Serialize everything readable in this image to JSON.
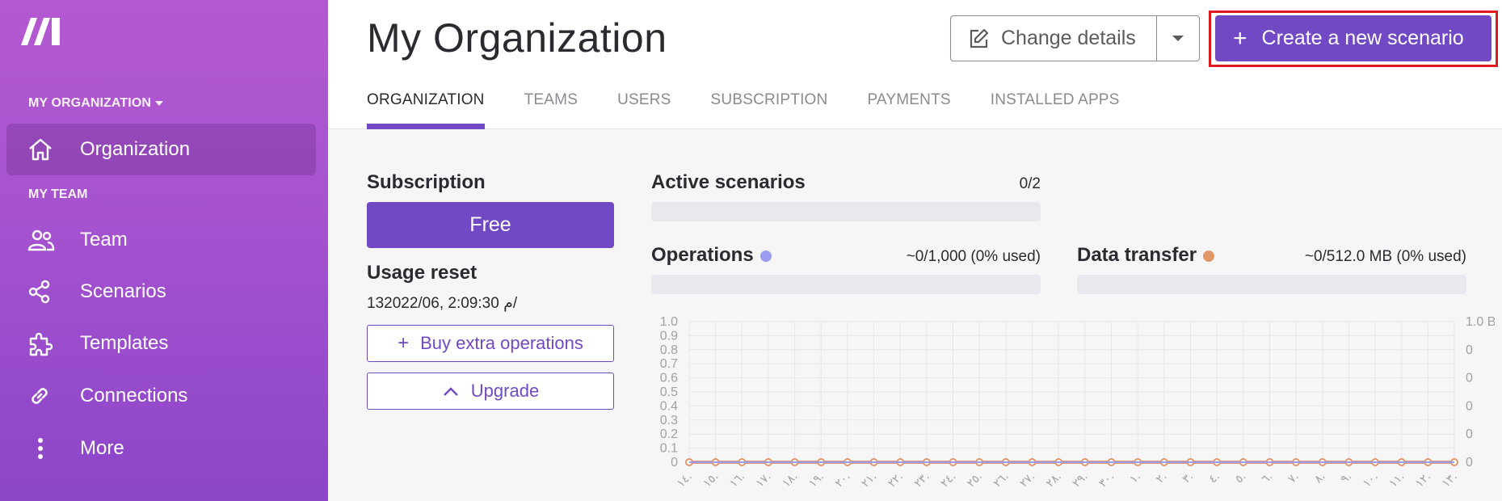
{
  "sidebar": {
    "org_label": "MY ORGANIZATION",
    "team_label": "MY TEAM",
    "items": [
      {
        "label": "Organization",
        "icon": "home-icon"
      },
      {
        "label": "Team",
        "icon": "users-icon"
      },
      {
        "label": "Scenarios",
        "icon": "share-icon"
      },
      {
        "label": "Templates",
        "icon": "puzzle-icon"
      },
      {
        "label": "Connections",
        "icon": "link-icon"
      },
      {
        "label": "More",
        "icon": "more-vertical-icon"
      }
    ]
  },
  "header": {
    "title": "My Organization",
    "change_details": "Change details",
    "create_scenario": "Create a new scenario",
    "tabs": [
      "ORGANIZATION",
      "TEAMS",
      "USERS",
      "SUBSCRIPTION",
      "PAYMENTS",
      "INSTALLED APPS"
    ],
    "active_tab": "ORGANIZATION"
  },
  "subscription": {
    "title": "Subscription",
    "plan": "Free",
    "reset_title": "Usage reset",
    "reset_date": "13م 2:09:30 ,2022/06/",
    "buy_ops": "Buy extra operations",
    "upgrade": "Upgrade"
  },
  "stats": {
    "active_title": "Active scenarios",
    "active_value": "0/2",
    "ops_title": "Operations",
    "ops_value": "~0/1,000 (0% used)",
    "transfer_title": "Data transfer",
    "transfer_value": "~0/512.0 MB (0% used)"
  },
  "colors": {
    "accent": "#7149c4",
    "ops_dot": "#9a9df0",
    "transfer_dot": "#e0976a",
    "highlight": "#e0191f"
  },
  "chart_data": {
    "type": "line",
    "x": [
      "١٤.",
      "١٥.",
      "١٦.",
      "١٧.",
      "١٨.",
      "١٩.",
      "٢٠.",
      "٢١.",
      "٢٢.",
      "٢٣.",
      "٢٤.",
      "٢٥.",
      "٢٦.",
      "٢٧.",
      "٢٨.",
      "٢٩.",
      "٣٠.",
      "١.",
      "٢.",
      "٣.",
      "٤.",
      "٥.",
      "٦.",
      "٧.",
      "٨.",
      "٩.",
      "١٠.",
      "١١.",
      "١٢.",
      "١٣."
    ],
    "y_left_ticks": [
      "1.0",
      "0.9",
      "0.8",
      "0.7",
      "0.6",
      "0.5",
      "0.4",
      "0.3",
      "0.2",
      "0.1",
      "0"
    ],
    "y_right_ticks": [
      "1.0 B",
      "0",
      "0",
      "0",
      "0",
      "0"
    ],
    "ylim": [
      0,
      1
    ],
    "series": [
      {
        "values": [
          0,
          0,
          0,
          0,
          0,
          0,
          0,
          0,
          0,
          0,
          0,
          0,
          0,
          0,
          0,
          0,
          0,
          0,
          0,
          0,
          0,
          0,
          0,
          0,
          0,
          0,
          0,
          0,
          0,
          0
        ],
        "color": "#e0976a"
      },
      {
        "values": [
          0,
          0,
          0,
          0,
          0,
          0,
          0,
          0,
          0,
          0,
          0,
          0,
          0,
          0,
          0,
          0,
          0,
          0,
          0,
          0,
          0,
          0,
          0,
          0,
          0,
          0,
          0,
          0,
          0,
          0
        ],
        "color": "#9a9df0"
      }
    ],
    "grid": true
  }
}
